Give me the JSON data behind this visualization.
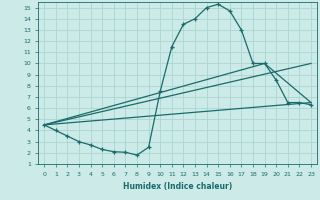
{
  "xlabel": "Humidex (Indice chaleur)",
  "background_color": "#cceae7",
  "grid_color": "#aad4d0",
  "line_color": "#1a6b6b",
  "xlim": [
    -0.5,
    23.5
  ],
  "ylim": [
    1,
    15.5
  ],
  "x_ticks": [
    0,
    1,
    2,
    3,
    4,
    5,
    6,
    7,
    8,
    9,
    10,
    11,
    12,
    13,
    14,
    15,
    16,
    17,
    18,
    19,
    20,
    21,
    22,
    23
  ],
  "y_ticks": [
    1,
    2,
    3,
    4,
    5,
    6,
    7,
    8,
    9,
    10,
    11,
    12,
    13,
    14,
    15
  ],
  "curve1_x": [
    0,
    1,
    2,
    3,
    4,
    5,
    6,
    7,
    8,
    9,
    10,
    11,
    12,
    13,
    14,
    15,
    16,
    17,
    18,
    19,
    20,
    21,
    22,
    23
  ],
  "curve1_y": [
    4.5,
    4.0,
    3.5,
    3.0,
    2.7,
    2.3,
    2.1,
    2.05,
    1.8,
    2.5,
    7.5,
    11.5,
    13.5,
    14.0,
    15.0,
    15.3,
    14.7,
    13.0,
    10.0,
    10.0,
    8.5,
    6.5,
    6.5,
    6.3
  ],
  "line1_x": [
    0,
    23
  ],
  "line1_y": [
    4.5,
    6.5
  ],
  "line2_x": [
    0,
    19,
    23
  ],
  "line2_y": [
    4.5,
    10.0,
    6.5
  ],
  "line3_x": [
    0,
    23
  ],
  "line3_y": [
    4.5,
    10.0
  ]
}
